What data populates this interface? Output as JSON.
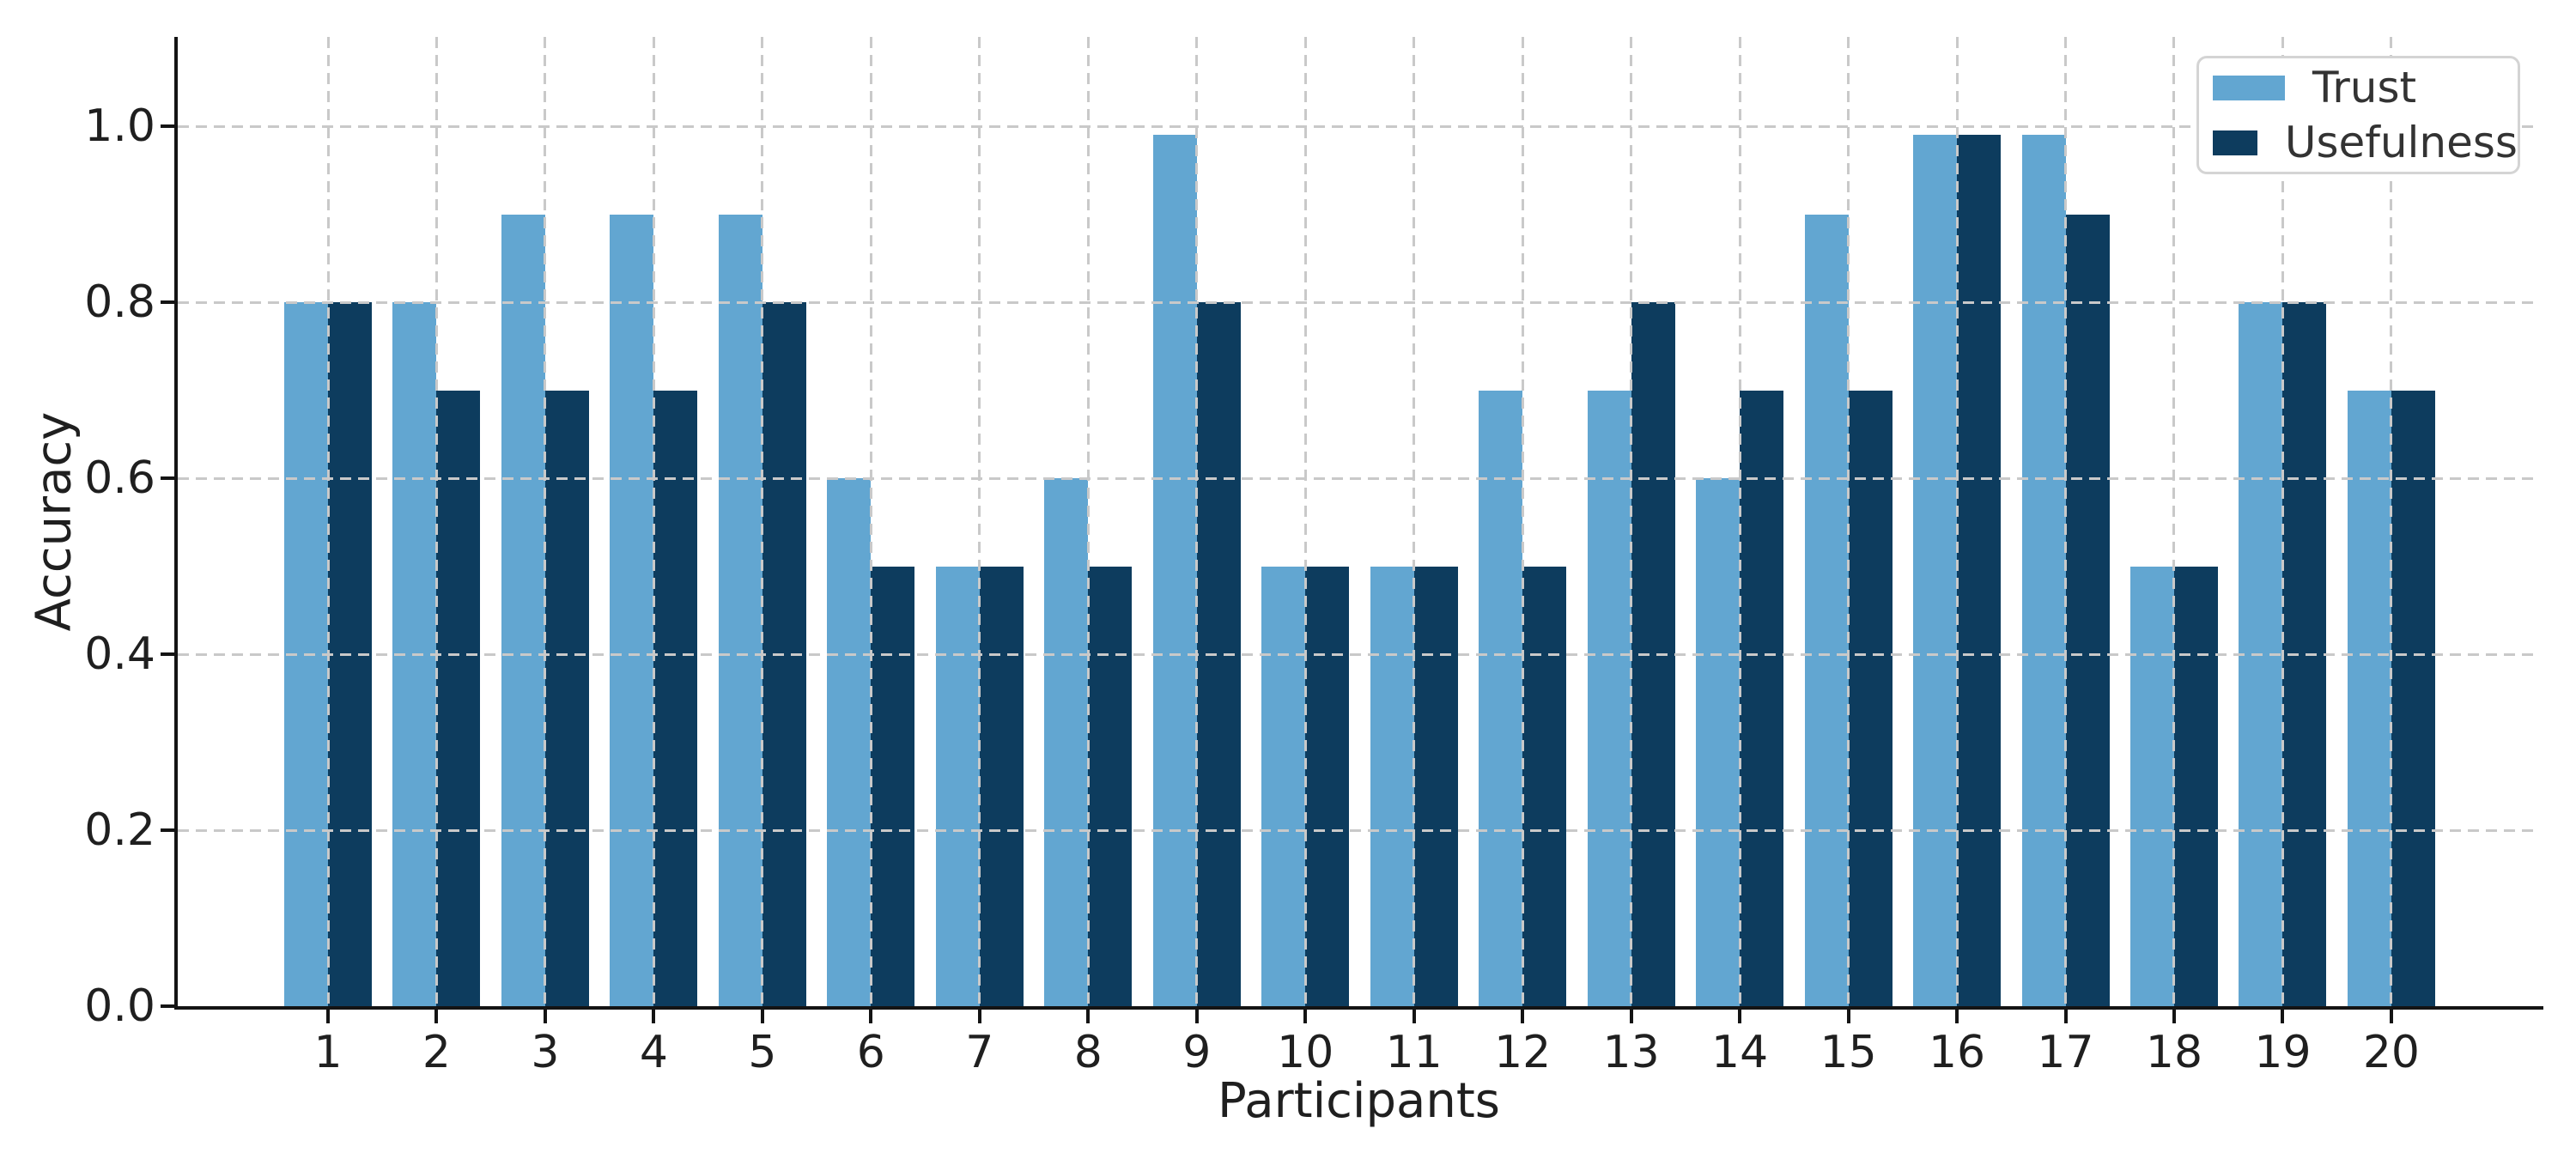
{
  "chart_data": {
    "type": "bar",
    "title": "",
    "xlabel": "Participants",
    "ylabel": "Accuracy",
    "categories": [
      "1",
      "2",
      "3",
      "4",
      "5",
      "6",
      "7",
      "8",
      "9",
      "10",
      "11",
      "12",
      "13",
      "14",
      "15",
      "16",
      "17",
      "18",
      "19",
      "20"
    ],
    "series": [
      {
        "name": "Trust",
        "color": "#62A6D1",
        "values": [
          0.8,
          0.8,
          0.9,
          0.9,
          0.9,
          0.6,
          0.5,
          0.6,
          0.99,
          0.5,
          0.5,
          0.7,
          0.7,
          0.6,
          0.9,
          0.99,
          0.99,
          0.5,
          0.8,
          0.7
        ]
      },
      {
        "name": "Usefulness",
        "color": "#0D3C5E",
        "values": [
          0.8,
          0.7,
          0.7,
          0.7,
          0.8,
          0.5,
          0.5,
          0.5,
          0.8,
          0.5,
          0.5,
          0.5,
          0.8,
          0.7,
          0.7,
          0.99,
          0.9,
          0.5,
          0.8,
          0.7
        ]
      }
    ],
    "ylim": [
      0,
      1.1
    ],
    "yticks": [
      "0.0",
      "0.2",
      "0.4",
      "0.6",
      "0.8",
      "1.0"
    ],
    "grid": true,
    "grid_style": "dashed",
    "legend_position": "upper right"
  },
  "colors": {
    "background": "#ffffff",
    "grid": "#c9c9c9",
    "spine": "#141414",
    "text": "#1f1f1f"
  }
}
